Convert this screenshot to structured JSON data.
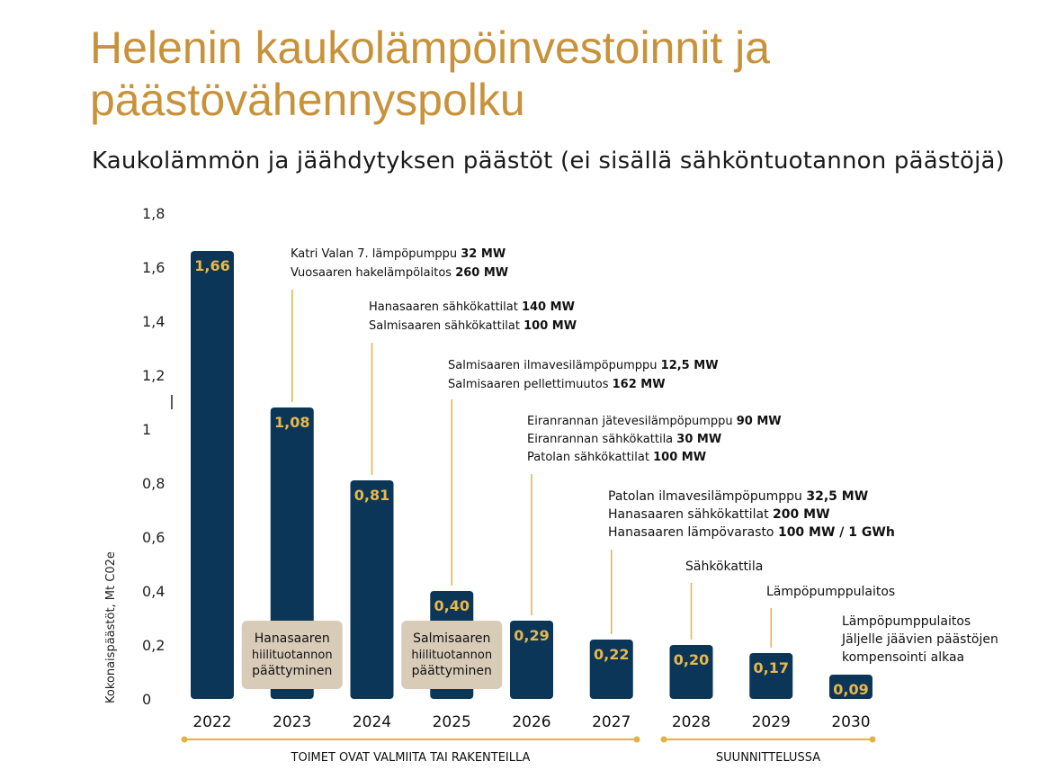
{
  "title": "Helenin kaukolämpöinvestoinnit ja päästövähennyspolku",
  "subtitle": "Kaukolämmön ja jäähdytyksen päästöt (ei sisällä sähköntuotannon päästöjä)",
  "colors": {
    "bar": "#0c3657",
    "value_label": "#e8b84a",
    "title": "#c8923a",
    "accent_line": "#e3b341",
    "box": "#d8cbb8"
  },
  "chart_data": {
    "type": "bar",
    "categories": [
      "2022",
      "2023",
      "2024",
      "2025",
      "2026",
      "2027",
      "2028",
      "2029",
      "2030"
    ],
    "values": [
      1.66,
      1.08,
      0.81,
      0.4,
      0.29,
      0.22,
      0.2,
      0.17,
      0.09
    ],
    "value_labels": [
      "1,66",
      "1,08",
      "0,81",
      "0,40",
      "0,29",
      "0,22",
      "0,20",
      "0,17",
      "0,09"
    ],
    "ylabel": "Kokonaispäästöt, Mt C02e",
    "ylim": [
      0,
      1.8
    ],
    "yticks": [
      "0",
      "0,2",
      "0,4",
      "0,6",
      "0,8",
      "1",
      "1,2",
      "1,4",
      "1,6",
      "1,8"
    ],
    "annotations": [
      {
        "year": "2023",
        "lines": [
          [
            "Katri Valan 7. lämpöpumppu ",
            "32 MW"
          ],
          [
            "Vuosaaren hakelämpölaitos ",
            "260 MW"
          ]
        ]
      },
      {
        "year": "2024",
        "lines": [
          [
            "Hanasaaren sähkökattilat ",
            "140 MW"
          ],
          [
            "Salmisaaren sähkökattilat ",
            "100 MW"
          ]
        ]
      },
      {
        "year": "2025",
        "lines": [
          [
            "Salmisaaren ilmavesilämpöpumppu ",
            "12,5 MW"
          ],
          [
            "Salmisaaren pellettimuutos ",
            "162 MW"
          ]
        ]
      },
      {
        "year": "2026",
        "lines": [
          [
            "Eiranrannan jätevesilämpöpumppu ",
            "90 MW"
          ],
          [
            "Eiranrannan sähkökattila ",
            "30 MW"
          ],
          [
            "Patolan sähkökattilat ",
            "100 MW"
          ]
        ]
      },
      {
        "year": "2027",
        "lines": [
          [
            "Patolan ilmavesilämpöpumppu ",
            "32,5 MW"
          ],
          [
            "Hanasaaren sähkökattilat ",
            "200 MW"
          ],
          [
            "Hanasaaren lämpövarasto ",
            "100 MW / 1 GWh"
          ]
        ]
      },
      {
        "year": "2028",
        "lines": [
          [
            "Sähkökattila",
            ""
          ]
        ]
      },
      {
        "year": "2029",
        "lines": [
          [
            "Lämpöpumppulaitos",
            ""
          ]
        ]
      },
      {
        "year": "2030",
        "lines": [
          [
            "Lämpöpumppulaitos",
            ""
          ],
          [
            "Jäljelle jäävien päästöjen",
            ""
          ],
          [
            "kompensointi alkaa",
            ""
          ]
        ]
      }
    ],
    "event_boxes": [
      {
        "year": "2023",
        "lines": [
          "Hanasaaren",
          "hiilituotannon",
          "päättyminen"
        ]
      },
      {
        "year": "2025",
        "lines": [
          "Salmisaaren",
          "hiilituotannon",
          "päättyminen"
        ]
      }
    ],
    "phases": [
      {
        "label": "TOIMET OVAT VALMIITA TAI RAKENTEILLA",
        "from": "2022",
        "to": "2027"
      },
      {
        "label": "SUUNNITTELUSSA",
        "from": "2028",
        "to": "2030"
      }
    ]
  }
}
